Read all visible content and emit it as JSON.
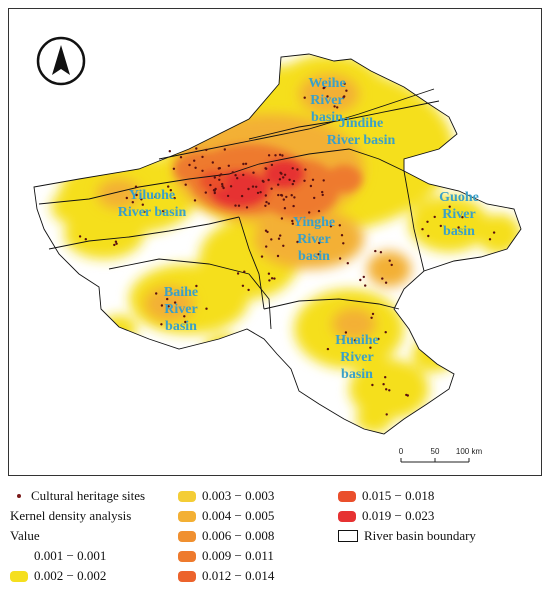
{
  "map": {
    "north_arrow": "north-arrow-icon",
    "basin_labels": [
      {
        "id": "weihe",
        "lines": [
          "Weihe",
          "River",
          "basin"
        ]
      },
      {
        "id": "jindihe",
        "lines": [
          "Jindihe",
          "River basin"
        ]
      },
      {
        "id": "yiluohe",
        "lines": [
          "Yiluohe",
          "River basin"
        ]
      },
      {
        "id": "yinghe",
        "lines": [
          "Yinghe",
          "River",
          "basin"
        ]
      },
      {
        "id": "guohe",
        "lines": [
          "Guohe",
          "River",
          "basin"
        ]
      },
      {
        "id": "baihe",
        "lines": [
          "Baihe",
          "River",
          "basin"
        ]
      },
      {
        "id": "huaihe",
        "lines": [
          "Huaihe",
          "River",
          "basin"
        ]
      }
    ],
    "scale_bar": {
      "ticks": [
        "0",
        "50",
        "100 km"
      ]
    },
    "density_colors": [
      "#fff7b0",
      "#f5d52a",
      "#f5a32c",
      "#f1842b",
      "#ee6f2b",
      "#ea5a2b",
      "#e64a2b",
      "#e0342f"
    ]
  },
  "legend": {
    "sites": "Cultural heritage sites",
    "kda_title": "Kernel density analysis",
    "value_title": "Value",
    "classes": [
      {
        "label": "0.001 − 0.001",
        "color": "#ffffff"
      },
      {
        "label": "0.002 − 0.002",
        "color": "#f5df1e"
      },
      {
        "label": "0.003 − 0.003",
        "color": "#f4cd36"
      },
      {
        "label": "0.004 − 0.005",
        "color": "#f3b034"
      },
      {
        "label": "0.006 − 0.008",
        "color": "#f09030"
      },
      {
        "label": "0.009 − 0.011",
        "color": "#ee7a2d"
      },
      {
        "label": "0.012 − 0.014",
        "color": "#ec632c"
      },
      {
        "label": "0.015 − 0.018",
        "color": "#ea4f2c"
      },
      {
        "label": "0.019 − 0.023",
        "color": "#e63232"
      }
    ],
    "boundary": "River basin boundary"
  }
}
